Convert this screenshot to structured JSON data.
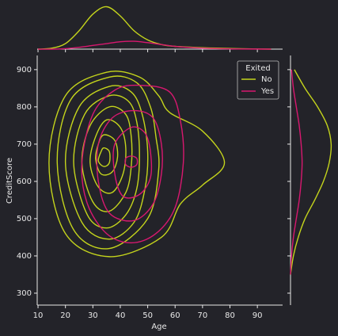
{
  "chart_data": {
    "type": "kde-joint",
    "x_label": "Age",
    "y_label": "CreditScore",
    "xlim": [
      9.7,
      99.2
    ],
    "ylim": [
      268,
      938
    ],
    "xticks": [
      10,
      20,
      30,
      40,
      50,
      60,
      70,
      80,
      90
    ],
    "yticks": [
      300,
      400,
      500,
      600,
      700,
      800,
      900
    ],
    "legend_title": "Exited",
    "legend_position": "upper right",
    "series": [
      {
        "name": "No",
        "color": "#c4d41c",
        "contours": [
          {
            "x": [
              35,
              47,
              54,
              58,
              70,
              78,
              70,
              62,
              55,
              36,
              20,
              14,
              20
            ],
            "y": [
              893,
              880,
              830,
              785,
              735,
              650,
              590,
              540,
              450,
              398,
              460,
              650,
              830
            ]
          },
          {
            "x": [
              36,
              46,
              51,
              53,
              54,
              50,
              36,
              23,
              17,
              22
            ],
            "y": [
              880,
              865,
              800,
              720,
              630,
              500,
              420,
              470,
              650,
              820
            ]
          },
          {
            "x": [
              36,
              44,
              48,
              50,
              49,
              45,
              36,
              26,
              20,
              25
            ],
            "y": [
              855,
              840,
              780,
              680,
              580,
              490,
              445,
              490,
              650,
              800
            ]
          },
          {
            "x": [
              36,
              43,
              46,
              47,
              46,
              42,
              35,
              28,
              23,
              27
            ],
            "y": [
              830,
              815,
              760,
              670,
              580,
              510,
              475,
              510,
              650,
              780
            ]
          },
          {
            "x": [
              36,
              42,
              44,
              44,
              42,
              36,
              30,
              26,
              29
            ],
            "y": [
              800,
              780,
              720,
              640,
              570,
              520,
              545,
              650,
              750
            ]
          },
          {
            "x": [
              35,
              40,
              42,
              41,
              37,
              32,
              29,
              31
            ],
            "y": [
              765,
              745,
              690,
              620,
              570,
              585,
              650,
              720
            ]
          },
          {
            "x": [
              34,
              38,
              39,
              37,
              33,
              31,
              32
            ],
            "y": [
              725,
              710,
              665,
              625,
              620,
              660,
              700
            ]
          },
          {
            "x": [
              34,
              36,
              36,
              34,
              32,
              33
            ],
            "y": [
              690,
              680,
              650,
              640,
              655,
              680
            ]
          }
        ],
        "top_x": [
          10,
          15,
          20,
          25,
          30,
          35,
          40,
          45,
          50,
          55,
          60,
          70,
          80,
          90,
          95
        ],
        "top_density": [
          0,
          0.001,
          0.006,
          0.02,
          0.038,
          0.046,
          0.036,
          0.02,
          0.01,
          0.005,
          0.003,
          0.0015,
          0.0007,
          0.0002,
          0
        ],
        "right_y": [
          350,
          400,
          450,
          500,
          550,
          600,
          650,
          700,
          750,
          800,
          850,
          900
        ],
        "right_density": [
          0,
          0.0003,
          0.0008,
          0.0015,
          0.0025,
          0.0034,
          0.004,
          0.0042,
          0.0038,
          0.0028,
          0.0015,
          0.0004
        ]
      },
      {
        "name": "Yes",
        "color": "#d8186f",
        "contours": [
          {
            "x": [
              47,
              58,
              62,
              63,
              60,
              53,
              44,
              35,
              28,
              26,
              30,
              38
            ],
            "y": [
              858,
              840,
              760,
              650,
              530,
              460,
              435,
              460,
              540,
              650,
              780,
              845
            ]
          },
          {
            "x": [
              45,
              52,
              55,
              55,
              52,
              45,
              36,
              32,
              32,
              37
            ],
            "y": [
              790,
              770,
              700,
              620,
              540,
              495,
              515,
              600,
              700,
              770
            ]
          },
          {
            "x": [
              44,
              49,
              51,
              51,
              47,
              41,
              38,
              38
            ],
            "y": [
              745,
              730,
              680,
              610,
              565,
              560,
              620,
              700
            ]
          },
          {
            "x": [
              44,
              46,
              46,
              44,
              42,
              42
            ],
            "y": [
              668,
              662,
              645,
              638,
              645,
              662
            ]
          }
        ],
        "top_x": [
          10,
          15,
          20,
          25,
          30,
          35,
          40,
          45,
          50,
          55,
          60,
          70,
          80,
          90,
          95
        ],
        "top_density": [
          0,
          0,
          0.0005,
          0.002,
          0.004,
          0.006,
          0.008,
          0.0085,
          0.007,
          0.005,
          0.003,
          0.001,
          0.0003,
          0.0001,
          0
        ],
        "right_y": [
          350,
          400,
          450,
          500,
          550,
          600,
          650,
          700,
          750,
          800,
          850,
          900
        ],
        "right_density": [
          0,
          0.0001,
          0.0003,
          0.0006,
          0.0009,
          0.0011,
          0.0012,
          0.0011,
          0.0009,
          0.0006,
          0.0003,
          0.0001
        ]
      }
    ],
    "top_ylim": [
      0,
      0.049
    ],
    "right_xlim": [
      0,
      0.0045
    ]
  }
}
